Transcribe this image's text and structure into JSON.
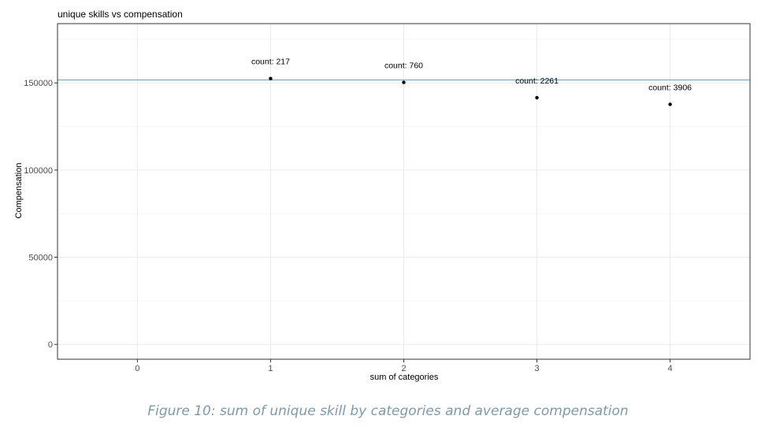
{
  "chart_data": {
    "type": "scatter",
    "title": "unique skills vs compensation",
    "xlabel": "sum of categories",
    "ylabel": "Compensation",
    "x_ticks": [
      0,
      1,
      2,
      3,
      4
    ],
    "y_ticks": [
      0,
      50000,
      100000,
      150000
    ],
    "xlim": [
      -0.6,
      4.6
    ],
    "ylim": [
      -8500,
      184000
    ],
    "grid": true,
    "points": [
      {
        "x": 1,
        "y": 152500,
        "label": "count: 217"
      },
      {
        "x": 2,
        "y": 150300,
        "label": "count: 760"
      },
      {
        "x": 3,
        "y": 141500,
        "label": "count: 2261"
      },
      {
        "x": 4,
        "y": 137700,
        "label": "count: 3906"
      }
    ],
    "hline": {
      "y": 151700,
      "color": "#6baed6"
    }
  },
  "caption": "Figure 10: sum of unique skill by categories and average compensation"
}
